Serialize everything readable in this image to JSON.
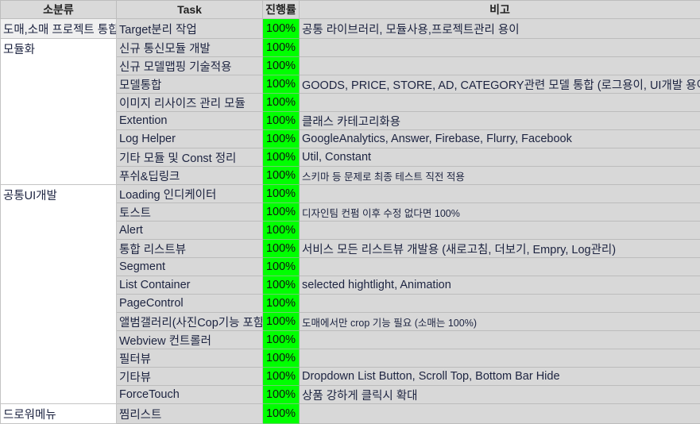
{
  "headers": {
    "category": "소분류",
    "task": "Task",
    "progress": "진행률",
    "note": "비고"
  },
  "rows": [
    {
      "category": "도매,소매 프로젝트 통합",
      "task": "Target분리 작업",
      "progress": "100%",
      "note": "공통 라이브러리, 모듈사용,프로젝트관리 용이"
    },
    {
      "category": "모듈화",
      "task": "신규 통신모듈 개발",
      "progress": "100%",
      "note": ""
    },
    {
      "category": "",
      "task": "신규 모델맵핑 기술적용",
      "progress": "100%",
      "note": ""
    },
    {
      "category": "",
      "task": "모델통합",
      "progress": "100%",
      "note": "GOODS, PRICE, STORE, AD, CATEGORY관련 모델 통합 (로그용이, UI개발 용이)"
    },
    {
      "category": "",
      "task": "이미지 리사이즈 관리 모듈",
      "progress": "100%",
      "note": ""
    },
    {
      "category": "",
      "task": "Extention",
      "progress": "100%",
      "note": "클래스 카테고리화용"
    },
    {
      "category": "",
      "task": "Log Helper",
      "progress": "100%",
      "note": "GoogleAnalytics, Answer, Firebase, Flurry, Facebook"
    },
    {
      "category": "",
      "task": "기타 모듈 및 Const 정리",
      "progress": "100%",
      "note": "Util, Constant"
    },
    {
      "category": "",
      "task": "푸쉬&딥링크",
      "progress": "100%",
      "note": "스키마 등 문제로 최종 테스트 직전 적용"
    },
    {
      "category": "공통UI개발",
      "task": "Loading 인디케이터",
      "progress": "100%",
      "note": ""
    },
    {
      "category": "",
      "task": "토스트",
      "progress": "100%",
      "note": "디자인팀 컨펌 이후 수정 없다면 100%"
    },
    {
      "category": "",
      "task": "Alert",
      "progress": "100%",
      "note": ""
    },
    {
      "category": "",
      "task": "통합 리스트뷰",
      "progress": "100%",
      "note": "서비스 모든 리스트뷰 개발용 (새로고침, 더보기, Empry, Log관리)"
    },
    {
      "category": "",
      "task": "Segment",
      "progress": "100%",
      "note": ""
    },
    {
      "category": "",
      "task": "List Container",
      "progress": "100%",
      "note": "selected hightlight, Animation"
    },
    {
      "category": "",
      "task": "PageControl",
      "progress": "100%",
      "note": ""
    },
    {
      "category": "",
      "task": "앨범갤러리(사진Cop기능 포함)",
      "progress": "100%",
      "note": "도매에서만 crop 기능 필요 (소매는 100%)"
    },
    {
      "category": "",
      "task": "Webview 컨트롤러",
      "progress": "100%",
      "note": ""
    },
    {
      "category": "",
      "task": "필터뷰",
      "progress": "100%",
      "note": ""
    },
    {
      "category": "",
      "task": "기타뷰",
      "progress": "100%",
      "note": "Dropdown List Button, Scroll Top, Bottom Bar Hide"
    },
    {
      "category": "",
      "task": "ForceTouch",
      "progress": "100%",
      "note": "상품 강하게 클릭시 확대"
    },
    {
      "category": "드로워메뉴",
      "task": "찜리스트",
      "progress": "100%",
      "note": ""
    }
  ],
  "colors": {
    "progress_fill": "#00ff00",
    "cell_gray": "#d8d8d8",
    "header_gray": "#d9d9d9"
  }
}
